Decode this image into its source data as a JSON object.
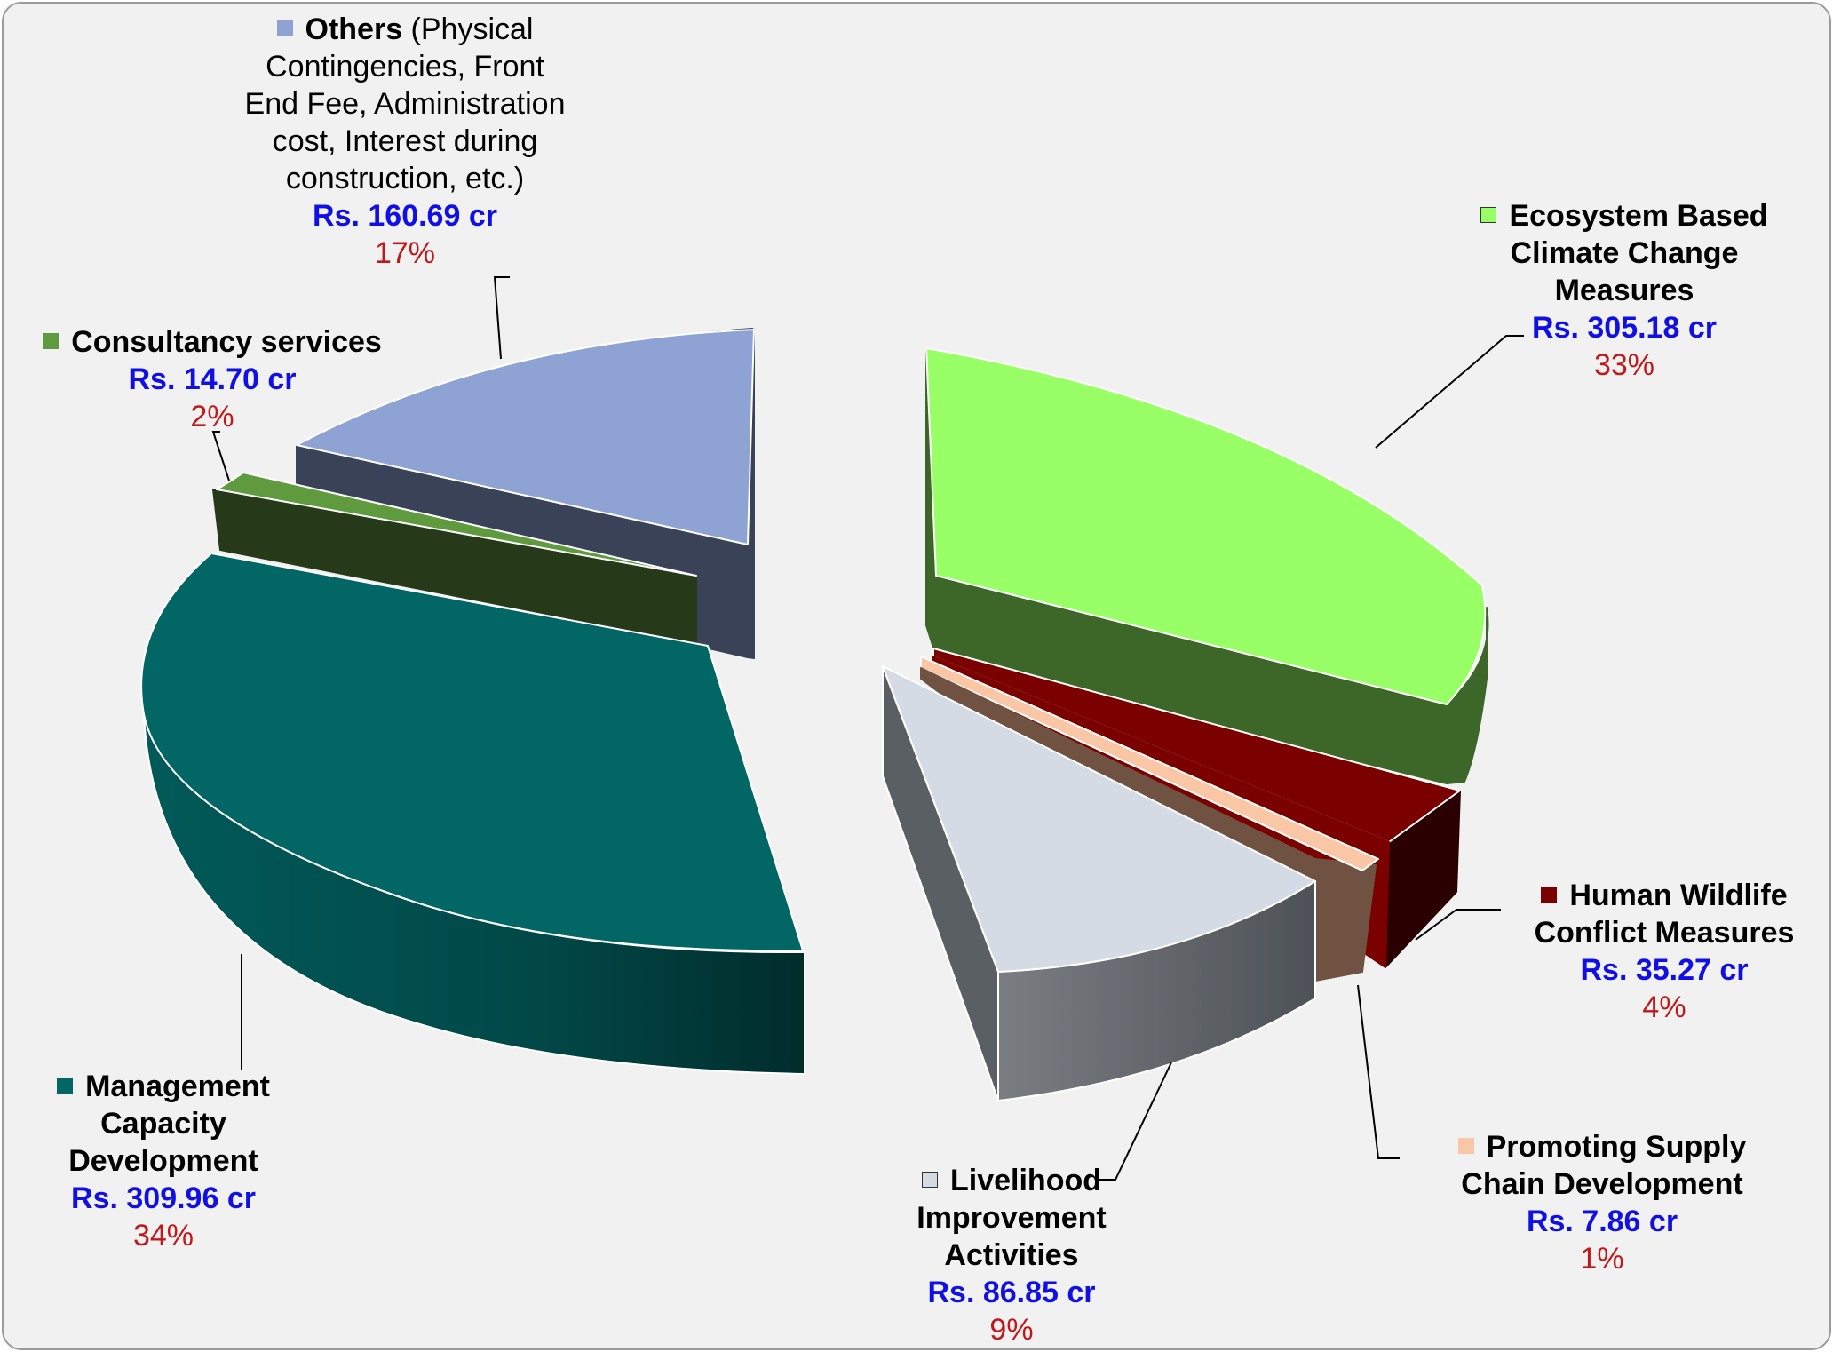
{
  "chart_data": {
    "type": "pie",
    "title": "",
    "unit": "Rs. cr",
    "slices": [
      {
        "key": "ecosystem",
        "bold": "Ecosystem Based Climate Change Measures",
        "rest": "",
        "value_label": "Rs. 305.18 cr",
        "value": 305.18,
        "pct_label": "33%",
        "color": "#99ff66"
      },
      {
        "key": "hwc",
        "bold": "Human Wildlife Conflict Measures",
        "rest": "",
        "value_label": "Rs. 35.27 cr",
        "value": 35.27,
        "pct_label": "4%",
        "color": "#7b0000"
      },
      {
        "key": "supply",
        "bold": "Promoting Supply Chain Development",
        "rest": "",
        "value_label": "Rs. 7.86 cr",
        "value": 7.86,
        "pct_label": "1%",
        "color": "#f9c6a6"
      },
      {
        "key": "livelihood",
        "bold": "Livelihood Improvement Activities",
        "rest": "",
        "value_label": "Rs. 86.85 cr",
        "value": 86.85,
        "pct_label": "9%",
        "color": "#d4dbe4"
      },
      {
        "key": "management",
        "bold": "Management Capacity Development",
        "rest": "",
        "value_label": "Rs. 309.96 cr",
        "value": 309.96,
        "pct_label": "34%",
        "color": "#026665"
      },
      {
        "key": "consultancy",
        "bold": "Consultancy services",
        "rest": "",
        "value_label": "Rs. 14.70 cr",
        "value": 14.7,
        "pct_label": "2%",
        "color": "#5f9b3e"
      },
      {
        "key": "others",
        "bold": "Others",
        "rest": " (Physical Contingencies, Front End Fee, Administration cost, Interest during construction, etc.)",
        "value_label": "Rs. 160.69 cr",
        "value": 160.69,
        "pct_label": "17%",
        "color": "#8ea2d4"
      }
    ]
  }
}
